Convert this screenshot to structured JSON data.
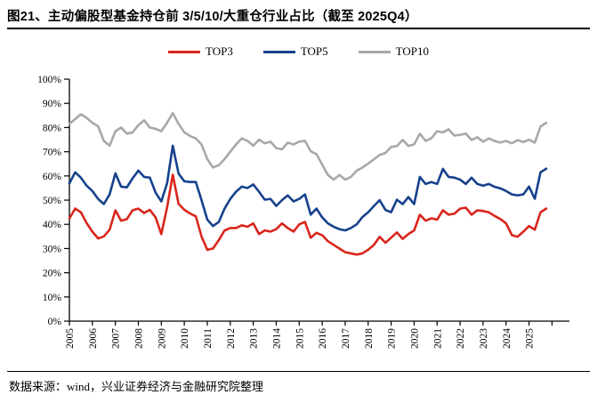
{
  "header": {
    "title": "图21、主动偏股型基金持仓前 3/5/10/大重仓行业占比（截至 2025Q4）"
  },
  "footer": {
    "source_text": "数据来源：wind，兴业证券经济与金融研究院整理"
  },
  "colors": {
    "top3": "#d9261c",
    "top5": "#16418c",
    "top10": "#a8a8a8",
    "axis": "#000000"
  },
  "chart_data": {
    "type": "line",
    "title": "主动偏股型基金持仓前3/5/10/大重仓行业占比",
    "x_start": "2005Q1",
    "x_end": "2025Q4",
    "frequency": "quarterly",
    "grid": false,
    "legend_position": "top-center",
    "ylim": [
      0,
      100
    ],
    "y_tick_labels": [
      "0%",
      "10%",
      "20%",
      "30%",
      "40%",
      "50%",
      "60%",
      "70%",
      "80%",
      "90%",
      "100%"
    ],
    "x_tick_labels": [
      "2005",
      "2006",
      "2007",
      "2008",
      "2009",
      "2010",
      "2011",
      "2012",
      "2013",
      "2014",
      "2015",
      "2016",
      "2017",
      "2018",
      "2019",
      "2020",
      "2021",
      "2022",
      "2023",
      "2024",
      "2025"
    ],
    "series": [
      {
        "name": "TOP3",
        "color": "#d9261c",
        "values": [
          42.5,
          46.5,
          45.0,
          40.5,
          37.0,
          34.2,
          35.0,
          37.8,
          45.8,
          41.5,
          42.2,
          45.8,
          46.5,
          44.7,
          46.0,
          42.9,
          36.0,
          47.0,
          60.5,
          48.5,
          46.0,
          44.5,
          43.3,
          35.0,
          29.5,
          30.0,
          33.5,
          37.5,
          38.5,
          38.5,
          39.6,
          39.0,
          40.4,
          36.0,
          37.5,
          37.0,
          38.0,
          40.4,
          38.5,
          37.0,
          40.0,
          41.0,
          34.5,
          36.5,
          35.5,
          33.0,
          31.5,
          30.0,
          28.5,
          28.0,
          27.5,
          28.0,
          29.5,
          31.5,
          34.9,
          32.4,
          34.5,
          36.7,
          34.0,
          36.0,
          37.5,
          44.0,
          41.5,
          42.5,
          42.0,
          45.8,
          44.0,
          44.4,
          46.5,
          46.9,
          44.0,
          45.8,
          45.5,
          45.0,
          43.5,
          42.2,
          40.4,
          35.6,
          34.9,
          37.0,
          39.3,
          37.8,
          45.0,
          46.5
        ]
      },
      {
        "name": "TOP5",
        "color": "#16418c",
        "values": [
          57.0,
          61.5,
          59.3,
          56.0,
          53.8,
          50.5,
          48.4,
          52.4,
          61.1,
          55.6,
          55.3,
          59.0,
          62.2,
          59.6,
          59.3,
          53.1,
          49.5,
          57.0,
          72.5,
          61.0,
          57.8,
          57.5,
          57.5,
          50.0,
          42.0,
          39.3,
          41.0,
          46.5,
          50.5,
          53.5,
          55.6,
          55.0,
          56.5,
          53.5,
          50.2,
          50.5,
          47.6,
          50.0,
          52.0,
          49.5,
          50.5,
          52.4,
          44.0,
          46.5,
          42.9,
          40.4,
          39.0,
          38.0,
          37.5,
          38.5,
          40.0,
          43.0,
          45.0,
          47.6,
          50.0,
          46.0,
          45.0,
          50.2,
          48.4,
          51.3,
          48.4,
          59.6,
          56.7,
          57.5,
          56.7,
          62.9,
          59.6,
          59.3,
          58.5,
          56.7,
          59.3,
          56.7,
          56.0,
          56.7,
          55.5,
          54.9,
          53.8,
          52.4,
          52.0,
          52.4,
          55.6,
          50.6,
          61.5,
          63.0
        ]
      },
      {
        "name": "TOP10",
        "color": "#a8a8a8",
        "values": [
          81.5,
          83.5,
          85.5,
          84.0,
          82.0,
          80.5,
          74.5,
          72.5,
          78.5,
          80.0,
          77.5,
          78.0,
          81.0,
          83.0,
          80.0,
          79.5,
          78.5,
          82.0,
          86.0,
          81.5,
          78.0,
          76.5,
          75.5,
          73.0,
          67.0,
          63.5,
          64.5,
          67.0,
          70.0,
          73.0,
          75.5,
          74.5,
          72.5,
          75.0,
          73.5,
          74.2,
          71.5,
          71.0,
          73.8,
          73.0,
          74.2,
          74.5,
          70.2,
          69.0,
          64.7,
          60.4,
          58.5,
          60.4,
          58.5,
          59.6,
          62.2,
          63.5,
          65.1,
          66.9,
          68.7,
          69.5,
          72.0,
          72.4,
          74.9,
          72.4,
          73.1,
          77.5,
          74.5,
          75.6,
          78.5,
          78.0,
          79.3,
          76.7,
          77.0,
          77.5,
          74.9,
          76.0,
          74.2,
          75.5,
          74.5,
          73.8,
          74.5,
          73.5,
          74.8,
          74.0,
          75.0,
          73.8,
          80.4,
          82.0
        ]
      }
    ]
  }
}
